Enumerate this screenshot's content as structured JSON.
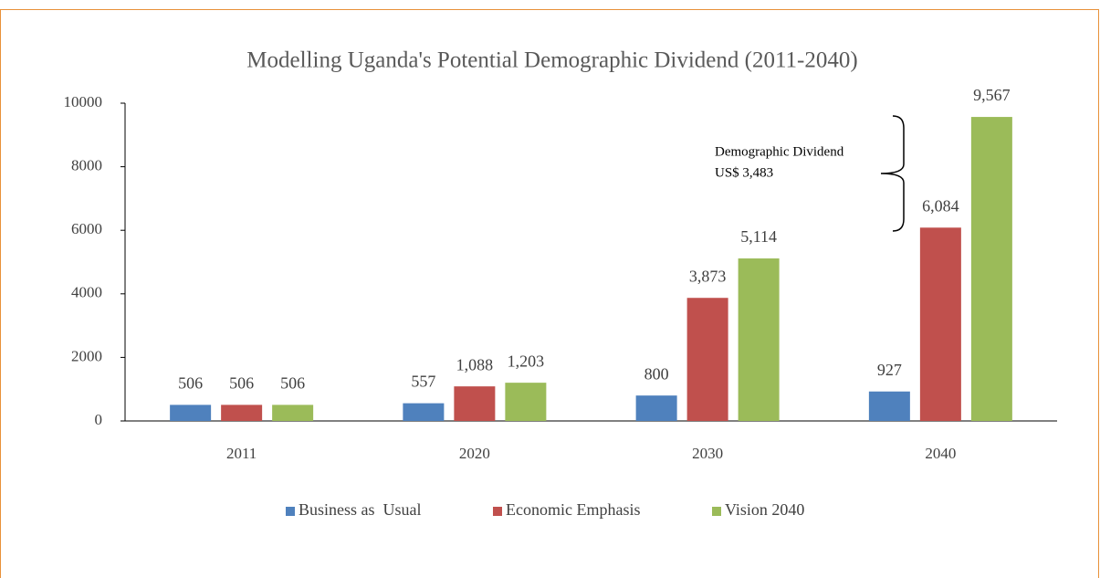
{
  "chart_data": {
    "type": "bar",
    "title": "Modelling Uganda's Potential Demographic Dividend (2011-2040)",
    "categories": [
      "2011",
      "2020",
      "2030",
      "2040"
    ],
    "series": [
      {
        "name": "Business as  Usual",
        "color": "#4f81bd",
        "values": [
          506,
          557,
          800,
          927
        ],
        "value_labels": [
          "506",
          "557",
          "800",
          "927"
        ]
      },
      {
        "name": "Economic Emphasis",
        "color": "#c0504d",
        "values": [
          506,
          1088,
          3873,
          6084
        ],
        "value_labels": [
          "506",
          "1,088",
          "3,873",
          "6,084"
        ]
      },
      {
        "name": "Vision 2040",
        "color": "#9bbb59",
        "values": [
          506,
          1203,
          5114,
          9567
        ],
        "value_labels": [
          "506",
          "1,203",
          "5,114",
          "9,567"
        ]
      }
    ],
    "annotations": [
      "Demographic Dividend",
      "US$ 3,483"
    ],
    "ylim": [
      0,
      10000
    ],
    "yticks": [
      0,
      2000,
      4000,
      6000,
      8000,
      10000
    ],
    "grid": false,
    "legend": "bottom"
  }
}
